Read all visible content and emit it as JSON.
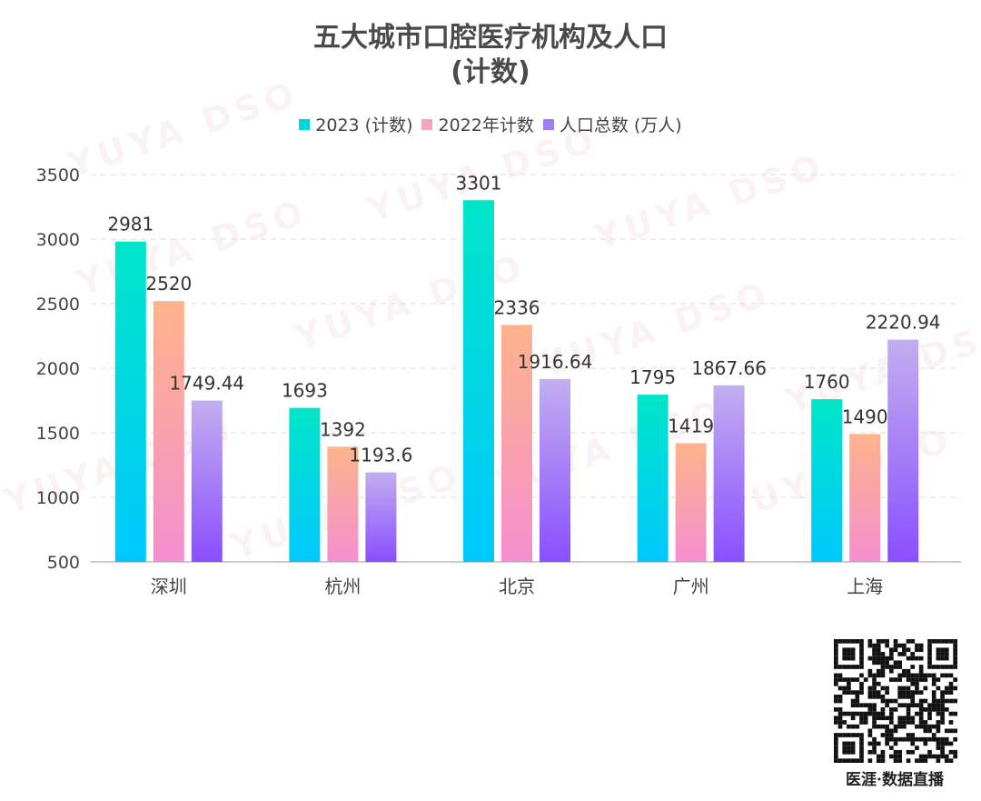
{
  "title_line1": "五大城市口腔医疗机构及人口",
  "title_line2": "(计数)",
  "watermark_text": "YUYA DSO",
  "qr_caption": "医涯·数据直播",
  "colors": {
    "s1_top": "#00e5c8",
    "s1_bottom": "#00c8ff",
    "s2_top": "#ffb38a",
    "s2_bottom": "#f48fd0",
    "s3_top": "#c2aef0",
    "s3_bottom": "#8a4fff"
  },
  "chart_data": {
    "type": "bar",
    "categories": [
      "深圳",
      "杭州",
      "北京",
      "广州",
      "上海"
    ],
    "series": [
      {
        "name": "2023 (计数)",
        "values": [
          2981,
          1693,
          3301,
          1795,
          1760
        ],
        "labels": [
          "2981",
          "1693",
          "3301",
          "1795",
          "1760"
        ]
      },
      {
        "name": "2022年计数",
        "values": [
          2520,
          1392,
          2336,
          1419,
          1490
        ],
        "labels": [
          "2520",
          "1392",
          "2336",
          "1419",
          "1490"
        ]
      },
      {
        "name": "人口总数 (万人)",
        "values": [
          1749.44,
          1193.6,
          1916.64,
          1867.66,
          2220.94
        ],
        "labels": [
          "1749.44",
          "1193.6",
          "1916.64",
          "1867.66",
          "2220.94"
        ]
      }
    ],
    "yticks": [
      "500",
      "1000",
      "1500",
      "2000",
      "2500",
      "3000",
      "3500"
    ],
    "ylim": [
      500,
      3500
    ],
    "grid": true,
    "legend_position": "top"
  }
}
